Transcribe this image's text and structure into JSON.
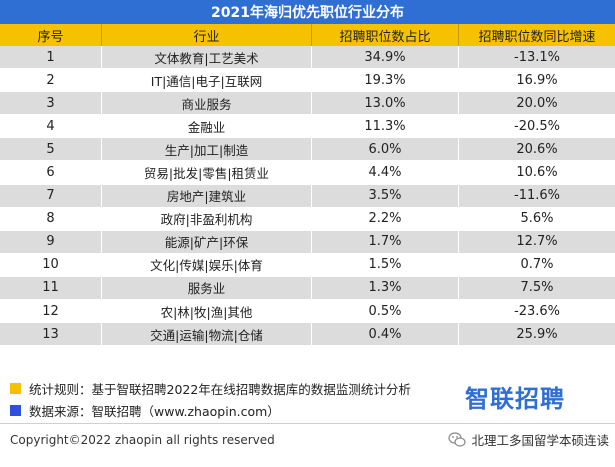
{
  "title": "2021年海归优先职位行业分布",
  "headers": [
    "序号",
    "行业",
    "招聘职位数占比",
    "招聘职位数同比增速"
  ],
  "rows": [
    {
      "no": "1",
      "industry": "文体教育|工艺美术",
      "share": "34.9%",
      "growth": "-13.1%"
    },
    {
      "no": "2",
      "industry": "IT|通信|电子|互联网",
      "share": "19.3%",
      "growth": "16.9%"
    },
    {
      "no": "3",
      "industry": "商业服务",
      "share": "13.0%",
      "growth": "20.0%"
    },
    {
      "no": "4",
      "industry": "金融业",
      "share": "11.3%",
      "growth": "-20.5%"
    },
    {
      "no": "5",
      "industry": "生产|加工|制造",
      "share": "6.0%",
      "growth": "20.6%"
    },
    {
      "no": "6",
      "industry": "贸易|批发|零售|租赁业",
      "share": "4.4%",
      "growth": "10.6%"
    },
    {
      "no": "7",
      "industry": "房地产|建筑业",
      "share": "3.5%",
      "growth": "-11.6%"
    },
    {
      "no": "8",
      "industry": "政府|非盈利机构",
      "share": "2.2%",
      "growth": "5.6%"
    },
    {
      "no": "9",
      "industry": "能源|矿产|环保",
      "share": "1.7%",
      "growth": "12.7%"
    },
    {
      "no": "10",
      "industry": "文化|传媒|娱乐|体育",
      "share": "1.5%",
      "growth": "0.7%"
    },
    {
      "no": "11",
      "industry": "服务业",
      "share": "1.3%",
      "growth": "7.5%"
    },
    {
      "no": "12",
      "industry": "农|林|牧|渔|其他",
      "share": "0.5%",
      "growth": "-23.6%"
    },
    {
      "no": "13",
      "industry": "交通|运输|物流|仓储",
      "share": "0.4%",
      "growth": "25.9%"
    }
  ],
  "notes": {
    "rule": "统计规则：基于智联招聘2022年在线招聘数据库的数据监测统计分析",
    "source": "数据来源：智联招聘（www.zhaopin.com）"
  },
  "logo": "智联招聘",
  "copyright": "Copyright©2022 zhaopin all rights reserved",
  "wechat_account": "北理工多国留学本硕连读",
  "colors": {
    "title_bg": "#2f6fd4",
    "header_bg": "#f6c200",
    "stripe": "#dcdcdc",
    "note_blue": "#2f4fe0"
  },
  "icons": {
    "wechat": "wechat-icon"
  }
}
